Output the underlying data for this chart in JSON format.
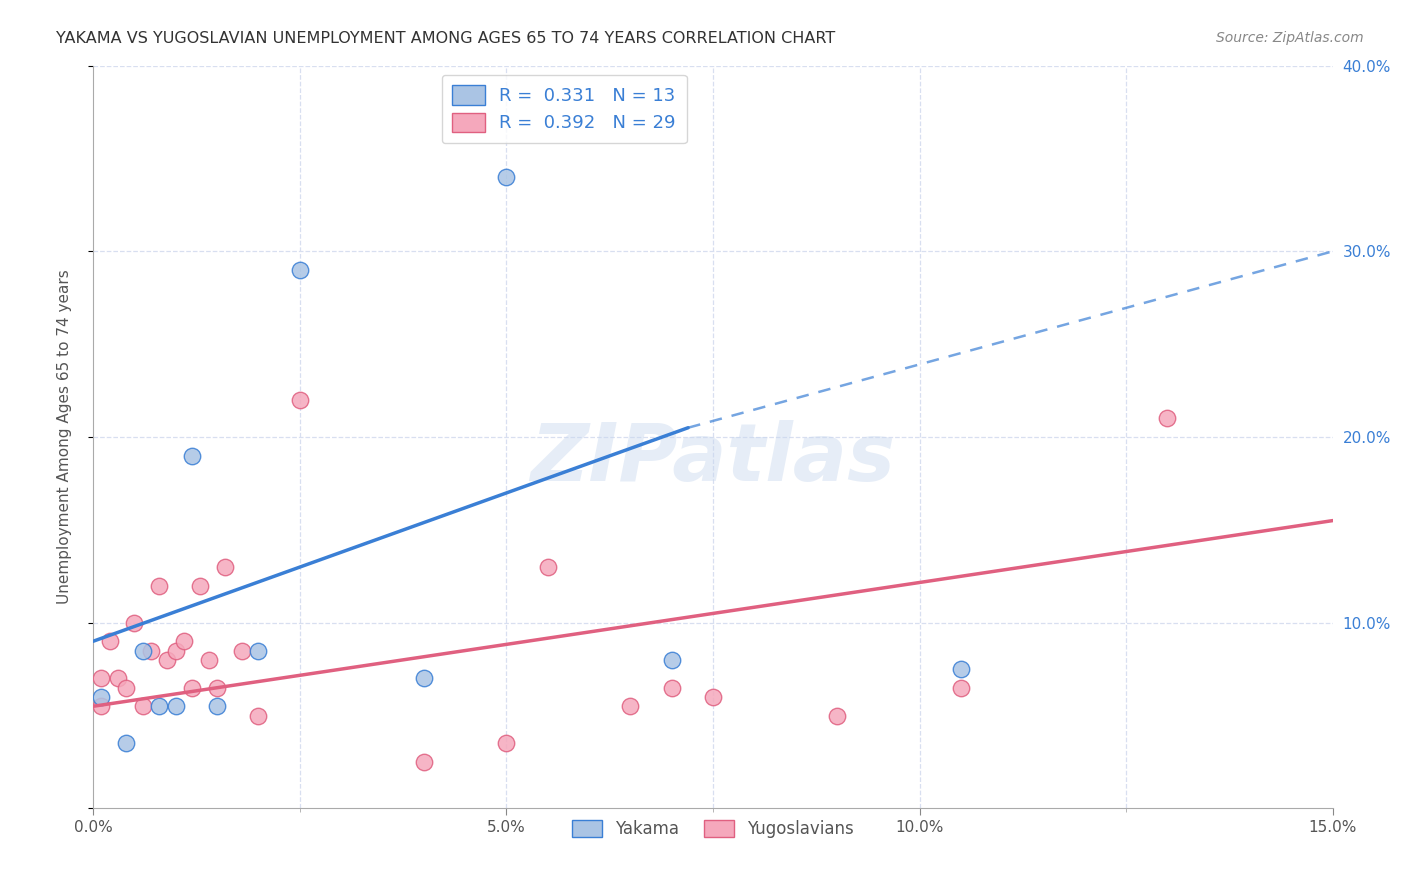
{
  "title": "YAKAMA VS YUGOSLAVIAN UNEMPLOYMENT AMONG AGES 65 TO 74 YEARS CORRELATION CHART",
  "source": "Source: ZipAtlas.com",
  "ylabel": "Unemployment Among Ages 65 to 74 years",
  "xlim": [
    0.0,
    0.15
  ],
  "ylim": [
    0.0,
    0.4
  ],
  "yakama_R": "0.331",
  "yakama_N": "13",
  "yugoslav_R": "0.392",
  "yugoslav_N": "29",
  "yakama_color": "#aac4e4",
  "yugoslav_color": "#f5a8bc",
  "yakama_line_color": "#3a7fd5",
  "yugoslav_line_color": "#e06080",
  "yakama_trend_x0": 0.0,
  "yakama_trend_y0": 0.09,
  "yakama_trend_x1": 0.072,
  "yakama_trend_y1": 0.205,
  "yakama_trend_dash_x0": 0.072,
  "yakama_trend_dash_y0": 0.205,
  "yakama_trend_dash_x1": 0.15,
  "yakama_trend_dash_y1": 0.3,
  "yugoslav_trend_x0": 0.0,
  "yugoslav_trend_y0": 0.055,
  "yugoslav_trend_x1": 0.15,
  "yugoslav_trend_y1": 0.155,
  "background_color": "#ffffff",
  "grid_color": "#d8dff0",
  "watermark": "ZIPatlas",
  "yakama_points_x": [
    0.001,
    0.004,
    0.006,
    0.008,
    0.01,
    0.012,
    0.015,
    0.02,
    0.025,
    0.05,
    0.07,
    0.105,
    0.04
  ],
  "yakama_points_y": [
    0.06,
    0.035,
    0.085,
    0.055,
    0.055,
    0.19,
    0.055,
    0.085,
    0.29,
    0.34,
    0.08,
    0.075,
    0.07
  ],
  "yugoslav_points_x": [
    0.001,
    0.001,
    0.002,
    0.003,
    0.004,
    0.005,
    0.006,
    0.007,
    0.008,
    0.009,
    0.01,
    0.011,
    0.012,
    0.013,
    0.014,
    0.015,
    0.016,
    0.018,
    0.02,
    0.025,
    0.04,
    0.05,
    0.055,
    0.065,
    0.07,
    0.075,
    0.09,
    0.105,
    0.13
  ],
  "yugoslav_points_y": [
    0.055,
    0.07,
    0.09,
    0.07,
    0.065,
    0.1,
    0.055,
    0.085,
    0.12,
    0.08,
    0.085,
    0.09,
    0.065,
    0.12,
    0.08,
    0.065,
    0.13,
    0.085,
    0.05,
    0.22,
    0.025,
    0.035,
    0.13,
    0.055,
    0.065,
    0.06,
    0.05,
    0.065,
    0.21
  ]
}
